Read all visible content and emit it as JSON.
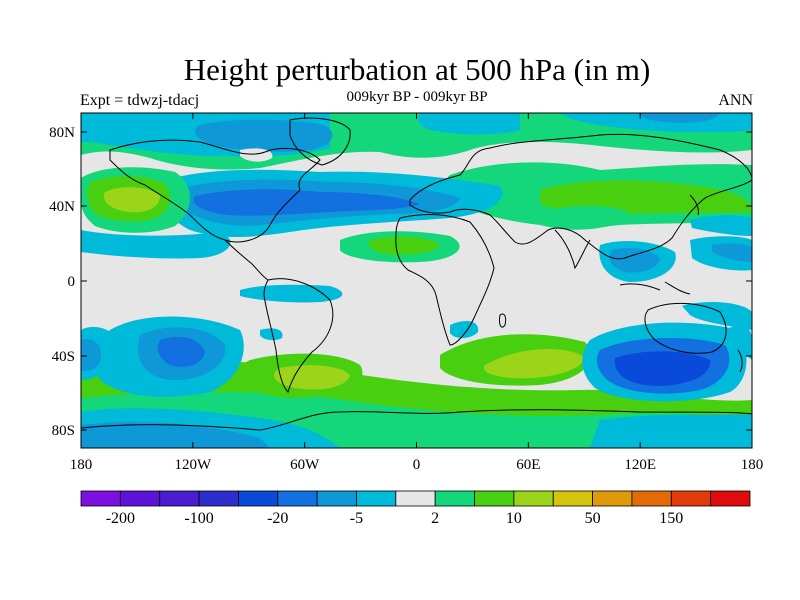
{
  "title": "Height perturbation at 500 hPa (in m)",
  "subtitle": "009kyr BP - 009kyr BP",
  "left_label": "Expt = tdwzj-tdacj",
  "right_label": "ANN",
  "lat_ticks": [
    "80N",
    "40N",
    "0",
    "40S",
    "80S"
  ],
  "lon_ticks": [
    "180",
    "120W",
    "60W",
    "0",
    "60E",
    "120E",
    "180"
  ],
  "colorbar": {
    "colors": [
      "#7B10E0",
      "#5E14D8",
      "#4A1CD2",
      "#2E2ECC",
      "#0A4AD8",
      "#1270E0",
      "#0E98D8",
      "#00BADA",
      "#E6E6E6",
      "#14D67A",
      "#48D010",
      "#9CD41A",
      "#D4C40E",
      "#DE9A0A",
      "#E46A08",
      "#E23A0A",
      "#DE0C0C"
    ],
    "labels": [
      "-200",
      "-100",
      "-20",
      "-5",
      "2",
      "10",
      "50",
      "150"
    ]
  }
}
